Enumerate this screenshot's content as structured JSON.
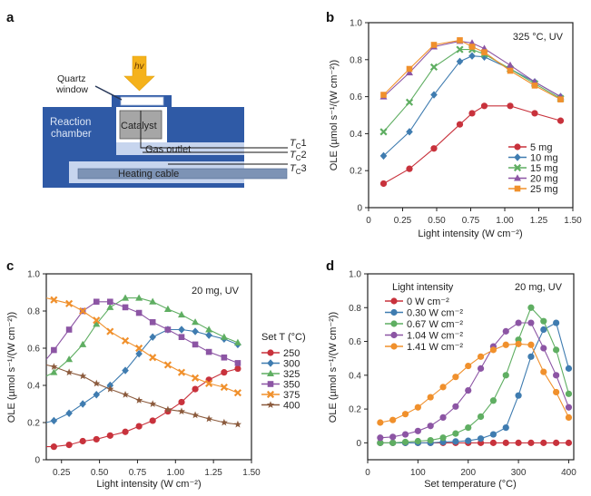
{
  "panel_a": {
    "label": "a",
    "light_label": "hv",
    "quartz_label_line1": "Quartz",
    "quartz_label_line2": "window",
    "chamber_label_line1": "Reaction",
    "chamber_label_line2": "chamber",
    "catalyst_label": "Catalyst",
    "gas_outlet_label": "Gas outlet",
    "heating_label": "Heating cable",
    "tc_labels": [
      {
        "main": "T",
        "sub": "C",
        "num": "1"
      },
      {
        "main": "T",
        "sub": "C",
        "num": "2"
      },
      {
        "main": "T",
        "sub": "C",
        "num": "3"
      }
    ],
    "colors": {
      "chamber": "#2f5aa6",
      "light_blue": "#c7d5ee",
      "cable": "#7d93b5",
      "catalyst": "#a6a6a6",
      "arrow": "#f5b21b"
    }
  },
  "chart_data": [
    {
      "panel": "b",
      "type": "line",
      "annotation": "325 °C, UV",
      "xlabel": "Light intensity (W cm⁻²)",
      "ylabel": "OLE (µmol s⁻¹/(W cm⁻²))",
      "xlim": [
        0,
        1.5
      ],
      "ylim": [
        0,
        1.0
      ],
      "xticks": [
        0,
        0.25,
        0.5,
        0.75,
        1.0,
        1.25,
        1.5
      ],
      "xtick_labels": [
        "0",
        "0.25",
        "0.50",
        "0.75",
        "1.00",
        "1.25",
        "1.50"
      ],
      "yticks": [
        0,
        0.2,
        0.4,
        0.6,
        0.8,
        1.0
      ],
      "ytick_labels": [
        "0",
        "0.2",
        "0.4",
        "0.6",
        "0.8",
        "1.0"
      ],
      "legend_position": "bottom-right",
      "legend_title": "",
      "x": [
        0.11,
        0.3,
        0.48,
        0.67,
        0.76,
        0.85,
        1.04,
        1.22,
        1.41
      ],
      "series": [
        {
          "name": "5 mg",
          "color": "#c8323c",
          "marker": "circle",
          "values": [
            0.13,
            0.21,
            0.32,
            0.45,
            0.51,
            0.55,
            0.55,
            0.51,
            0.47
          ]
        },
        {
          "name": "10 mg",
          "color": "#3f7cb0",
          "marker": "diamond",
          "values": [
            0.28,
            0.41,
            0.61,
            0.79,
            0.82,
            0.815,
            0.75,
            0.68,
            0.6
          ]
        },
        {
          "name": "15 mg",
          "color": "#5fae62",
          "marker": "x",
          "values": [
            0.41,
            0.57,
            0.76,
            0.855,
            0.855,
            0.83,
            0.75,
            0.67,
            0.59
          ]
        },
        {
          "name": "20 mg",
          "color": "#8c55a4",
          "marker": "triangle",
          "values": [
            0.6,
            0.73,
            0.87,
            0.9,
            0.89,
            0.86,
            0.77,
            0.68,
            0.6
          ]
        },
        {
          "name": "25 mg",
          "color": "#f0902c",
          "marker": "square",
          "values": [
            0.61,
            0.75,
            0.88,
            0.905,
            0.87,
            0.84,
            0.74,
            0.66,
            0.585
          ]
        }
      ]
    },
    {
      "panel": "c",
      "type": "line",
      "annotation": "20 mg, UV",
      "xlabel": "Light intensity (W cm⁻²)",
      "ylabel": "OLE (µmol s⁻¹/(W cm⁻²))",
      "xlim": [
        0.15,
        1.5
      ],
      "ylim": [
        0,
        1.0
      ],
      "xticks": [
        0.25,
        0.5,
        0.75,
        1.0,
        1.25,
        1.5
      ],
      "xtick_labels": [
        "0.25",
        "0.50",
        "0.75",
        "1.00",
        "1.25",
        "1.50"
      ],
      "yticks": [
        0,
        0.2,
        0.4,
        0.6,
        0.8,
        1.0
      ],
      "ytick_labels": [
        "0",
        "0.2",
        "0.4",
        "0.6",
        "0.8",
        "1.0"
      ],
      "legend_position": "right-outside",
      "legend_title": "Set T (°C)",
      "x": [
        0.2,
        0.3,
        0.39,
        0.48,
        0.57,
        0.67,
        0.76,
        0.85,
        0.95,
        1.04,
        1.13,
        1.22,
        1.32,
        1.41
      ],
      "series": [
        {
          "name": "250",
          "color": "#c8323c",
          "marker": "circle",
          "start": 0.07,
          "values": [
            0.07,
            0.08,
            0.1,
            0.11,
            0.13,
            0.15,
            0.18,
            0.21,
            0.26,
            0.31,
            0.38,
            0.43,
            0.47,
            0.49
          ]
        },
        {
          "name": "300",
          "color": "#3f7cb0",
          "marker": "diamond",
          "start": 0.2,
          "values": [
            0.21,
            0.25,
            0.3,
            0.35,
            0.4,
            0.48,
            0.57,
            0.66,
            0.7,
            0.7,
            0.69,
            0.67,
            0.65,
            0.62
          ]
        },
        {
          "name": "325",
          "color": "#5fae62",
          "marker": "triangle",
          "start": 0.45,
          "values": [
            0.47,
            0.54,
            0.62,
            0.73,
            0.82,
            0.87,
            0.87,
            0.85,
            0.81,
            0.78,
            0.74,
            0.7,
            0.66,
            0.63
          ]
        },
        {
          "name": "350",
          "color": "#8c55a4",
          "marker": "square",
          "start": 0.54,
          "values": [
            0.59,
            0.7,
            0.8,
            0.85,
            0.85,
            0.82,
            0.79,
            0.74,
            0.7,
            0.66,
            0.62,
            0.58,
            0.55,
            0.52
          ]
        },
        {
          "name": "375",
          "color": "#f0902c",
          "marker": "x",
          "start": 0.87,
          "values": [
            0.86,
            0.84,
            0.8,
            0.75,
            0.69,
            0.64,
            0.6,
            0.55,
            0.51,
            0.47,
            0.44,
            0.41,
            0.39,
            0.36
          ]
        },
        {
          "name": "400",
          "color": "#8b5a3c",
          "marker": "star",
          "start": 0.51,
          "values": [
            0.5,
            0.47,
            0.45,
            0.41,
            0.38,
            0.35,
            0.32,
            0.3,
            0.27,
            0.26,
            0.24,
            0.22,
            0.2,
            0.19
          ]
        }
      ]
    },
    {
      "panel": "d",
      "type": "line",
      "annotation": "20 mg, UV",
      "xlabel": "Set temperature (°C)",
      "ylabel": "OLE (µmol s⁻¹/(W cm⁻²))",
      "xlim": [
        0,
        410
      ],
      "ylim": [
        -0.1,
        1.0
      ],
      "xticks": [
        0,
        100,
        200,
        300,
        400
      ],
      "xtick_labels": [
        "0",
        "100",
        "200",
        "300",
        "400"
      ],
      "yticks": [
        0,
        0.2,
        0.4,
        0.6,
        0.8,
        1.0
      ],
      "ytick_labels": [
        "0",
        "0.2",
        "0.4",
        "0.6",
        "0.8",
        "1.0"
      ],
      "legend_position": "top-left",
      "legend_title": "Light intensity",
      "x": [
        25,
        50,
        75,
        100,
        125,
        150,
        175,
        200,
        225,
        250,
        275,
        300,
        325,
        350,
        375,
        400
      ],
      "series": [
        {
          "name": "0 W cm⁻²",
          "color": "#c8323c",
          "marker": "circle",
          "values": [
            0,
            0,
            0,
            0,
            0,
            0,
            0,
            0,
            0,
            0,
            0,
            0,
            0,
            0,
            0,
            0
          ]
        },
        {
          "name": "0.30 W cm⁻²",
          "color": "#3f7cb0",
          "marker": "circle",
          "values": [
            0,
            0,
            0,
            0,
            0,
            0.005,
            0.008,
            0.012,
            0.025,
            0.05,
            0.09,
            0.28,
            0.51,
            0.67,
            0.71,
            0.44
          ]
        },
        {
          "name": "0.67 W cm⁻²",
          "color": "#5fae62",
          "marker": "circle",
          "values": [
            0,
            0,
            0.005,
            0.01,
            0.015,
            0.03,
            0.055,
            0.09,
            0.155,
            0.25,
            0.4,
            0.61,
            0.8,
            0.72,
            0.55,
            0.29
          ]
        },
        {
          "name": "1.04 W cm⁻²",
          "color": "#8c55a4",
          "marker": "circle",
          "values": [
            0.03,
            0.035,
            0.05,
            0.07,
            0.1,
            0.15,
            0.215,
            0.31,
            0.44,
            0.57,
            0.66,
            0.71,
            0.71,
            0.56,
            0.4,
            0.21
          ]
        },
        {
          "name": "1.41 W cm⁻²",
          "color": "#f0902c",
          "marker": "circle",
          "values": [
            0.12,
            0.135,
            0.17,
            0.21,
            0.27,
            0.33,
            0.39,
            0.455,
            0.51,
            0.55,
            0.58,
            0.585,
            0.58,
            0.42,
            0.3,
            0.15
          ]
        }
      ]
    }
  ],
  "labels": {
    "b": "b",
    "c": "c",
    "d": "d"
  }
}
